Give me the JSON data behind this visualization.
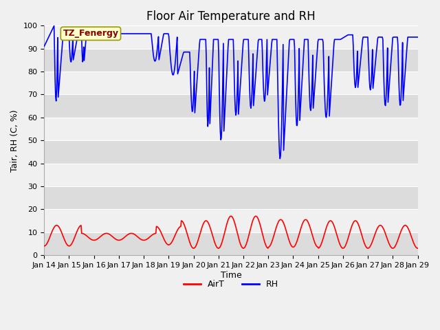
{
  "title": "Floor Air Temperature and RH",
  "xlabel": "Time",
  "ylabel": "Tair, RH (C, %)",
  "legend_label_AirT": "AirT",
  "legend_label_RH": "RH",
  "annotation_text": "TZ_Fenergy",
  "color_RH": "blue",
  "color_AirT": "red",
  "background_color_dark": "#dcdcdc",
  "background_color_light": "#f0f0f0",
  "figure_facecolor": "#f0f0f0",
  "ylim": [
    0,
    100
  ],
  "yticks": [
    0,
    10,
    20,
    30,
    40,
    50,
    60,
    70,
    80,
    90,
    100
  ],
  "x_tick_labels": [
    "Jan 14",
    "Jan 15",
    "Jan 16",
    "Jan 17",
    "Jan 18",
    "Jan 19",
    "Jan 20",
    "Jan 21",
    "Jan 22",
    "Jan 23",
    "Jan 24",
    "Jan 25",
    "Jan 26",
    "Jan 27",
    "Jan 28",
    "Jan 29"
  ],
  "title_fontsize": 12,
  "axis_label_fontsize": 9,
  "tick_fontsize": 8,
  "legend_fontsize": 9,
  "linewidth_RH": 1.2,
  "linewidth_AirT": 1.2,
  "annotation_fontsize": 9,
  "annotation_color": "#8B0000",
  "annotation_bbox_facecolor": "#ffffcc",
  "annotation_bbox_edgecolor": "#999900"
}
